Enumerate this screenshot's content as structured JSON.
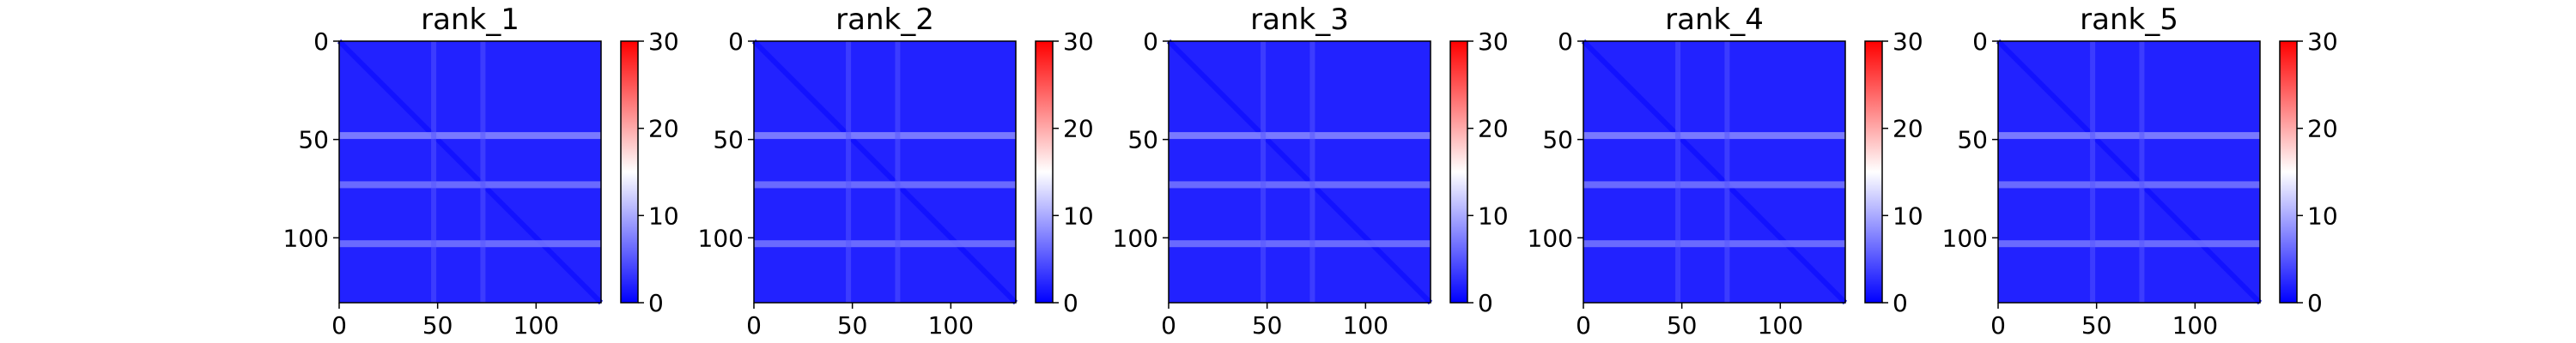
{
  "chart_data": [
    {
      "type": "heatmap",
      "title": "rank_1",
      "matrix_size": 133,
      "xlim": [
        0,
        133
      ],
      "ylim": [
        133,
        0
      ],
      "xticks": [
        0,
        50,
        100
      ],
      "yticks": [
        0,
        50,
        100
      ],
      "colorbar": {
        "range": [
          0,
          30
        ],
        "ticks": [
          0,
          10,
          20,
          30
        ],
        "colormap": "bwr",
        "colors": [
          "#0000ff",
          "#ffffff",
          "#ff0000"
        ]
      },
      "dominant_value": 2,
      "features": [
        {
          "kind": "diagonal_band",
          "value": 1
        },
        {
          "kind": "horizontal_band",
          "row": 48,
          "value": 8
        },
        {
          "kind": "horizontal_band",
          "row": 73,
          "value": 7
        },
        {
          "kind": "horizontal_band",
          "row": 103,
          "value": 7
        },
        {
          "kind": "vertical_band",
          "col": 48,
          "value": 5
        },
        {
          "kind": "vertical_band",
          "col": 73,
          "value": 5
        }
      ]
    },
    {
      "type": "heatmap",
      "title": "rank_2",
      "matrix_size": 133,
      "xlim": [
        0,
        133
      ],
      "ylim": [
        133,
        0
      ],
      "xticks": [
        0,
        50,
        100
      ],
      "yticks": [
        0,
        50,
        100
      ],
      "colorbar": {
        "range": [
          0,
          30
        ],
        "ticks": [
          0,
          10,
          20,
          30
        ],
        "colormap": "bwr",
        "colors": [
          "#0000ff",
          "#ffffff",
          "#ff0000"
        ]
      },
      "dominant_value": 2,
      "features": [
        {
          "kind": "diagonal_band",
          "value": 1
        },
        {
          "kind": "horizontal_band",
          "row": 48,
          "value": 8
        },
        {
          "kind": "horizontal_band",
          "row": 73,
          "value": 7
        },
        {
          "kind": "horizontal_band",
          "row": 103,
          "value": 7
        },
        {
          "kind": "vertical_band",
          "col": 48,
          "value": 5
        },
        {
          "kind": "vertical_band",
          "col": 73,
          "value": 5
        }
      ]
    },
    {
      "type": "heatmap",
      "title": "rank_3",
      "matrix_size": 133,
      "xlim": [
        0,
        133
      ],
      "ylim": [
        133,
        0
      ],
      "xticks": [
        0,
        50,
        100
      ],
      "yticks": [
        0,
        50,
        100
      ],
      "colorbar": {
        "range": [
          0,
          30
        ],
        "ticks": [
          0,
          10,
          20,
          30
        ],
        "colormap": "bwr",
        "colors": [
          "#0000ff",
          "#ffffff",
          "#ff0000"
        ]
      },
      "dominant_value": 2,
      "features": [
        {
          "kind": "diagonal_band",
          "value": 1
        },
        {
          "kind": "horizontal_band",
          "row": 48,
          "value": 8
        },
        {
          "kind": "horizontal_band",
          "row": 73,
          "value": 7
        },
        {
          "kind": "horizontal_band",
          "row": 103,
          "value": 7
        },
        {
          "kind": "vertical_band",
          "col": 48,
          "value": 5
        },
        {
          "kind": "vertical_band",
          "col": 73,
          "value": 5
        }
      ]
    },
    {
      "type": "heatmap",
      "title": "rank_4",
      "matrix_size": 133,
      "xlim": [
        0,
        133
      ],
      "ylim": [
        133,
        0
      ],
      "xticks": [
        0,
        50,
        100
      ],
      "yticks": [
        0,
        50,
        100
      ],
      "colorbar": {
        "range": [
          0,
          30
        ],
        "ticks": [
          0,
          10,
          20,
          30
        ],
        "colormap": "bwr",
        "colors": [
          "#0000ff",
          "#ffffff",
          "#ff0000"
        ]
      },
      "dominant_value": 2,
      "features": [
        {
          "kind": "diagonal_band",
          "value": 1
        },
        {
          "kind": "horizontal_band",
          "row": 48,
          "value": 8
        },
        {
          "kind": "horizontal_band",
          "row": 73,
          "value": 7
        },
        {
          "kind": "horizontal_band",
          "row": 103,
          "value": 7
        },
        {
          "kind": "vertical_band",
          "col": 48,
          "value": 5
        },
        {
          "kind": "vertical_band",
          "col": 73,
          "value": 5
        }
      ]
    },
    {
      "type": "heatmap",
      "title": "rank_5",
      "matrix_size": 133,
      "xlim": [
        0,
        133
      ],
      "ylim": [
        133,
        0
      ],
      "xticks": [
        0,
        50,
        100
      ],
      "yticks": [
        0,
        50,
        100
      ],
      "colorbar": {
        "range": [
          0,
          30
        ],
        "ticks": [
          0,
          10,
          20,
          30
        ],
        "colormap": "bwr",
        "colors": [
          "#0000ff",
          "#ffffff",
          "#ff0000"
        ]
      },
      "dominant_value": 2,
      "features": [
        {
          "kind": "diagonal_band",
          "value": 1
        },
        {
          "kind": "horizontal_band",
          "row": 48,
          "value": 8
        },
        {
          "kind": "horizontal_band",
          "row": 73,
          "value": 7
        },
        {
          "kind": "horizontal_band",
          "row": 103,
          "value": 7
        },
        {
          "kind": "vertical_band",
          "col": 48,
          "value": 5
        },
        {
          "kind": "vertical_band",
          "col": 73,
          "value": 5
        }
      ]
    }
  ]
}
